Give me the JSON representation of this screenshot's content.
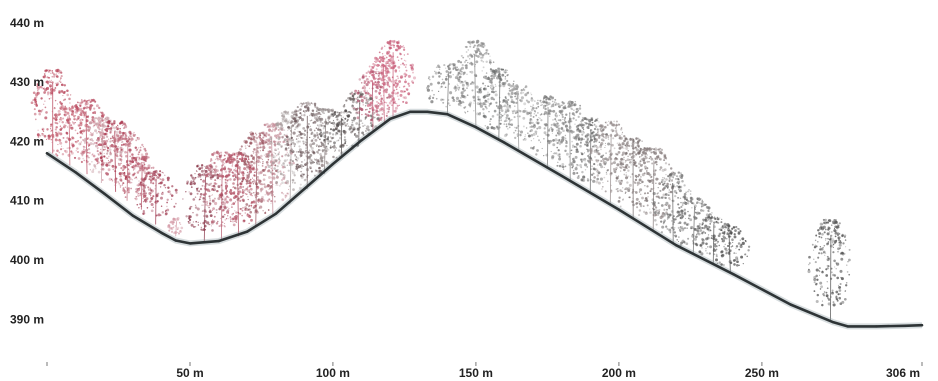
{
  "chart_data": {
    "type": "line",
    "title": "",
    "xlabel": "",
    "ylabel": "",
    "x_unit": "m",
    "y_unit": "m",
    "xlim": [
      0,
      306
    ],
    "ylim": [
      386,
      441
    ],
    "x_ticks": [
      {
        "value": 50,
        "label": "50 m"
      },
      {
        "value": 100,
        "label": "100 m"
      },
      {
        "value": 150,
        "label": "150 m"
      },
      {
        "value": 200,
        "label": "200 m"
      },
      {
        "value": 250,
        "label": "250 m"
      },
      {
        "value": 306,
        "label": "306 m"
      }
    ],
    "y_ticks": [
      {
        "value": 440,
        "label": "440 m"
      },
      {
        "value": 430,
        "label": "430 m"
      },
      {
        "value": 420,
        "label": "420 m"
      },
      {
        "value": 410,
        "label": "410 m"
      },
      {
        "value": 400,
        "label": "400 m"
      },
      {
        "value": 390,
        "label": "390 m"
      }
    ],
    "grid": false,
    "legend": "none",
    "series": [
      {
        "x": [
          0,
          10,
          20,
          30,
          40,
          45,
          50,
          60,
          70,
          80,
          90,
          100,
          110,
          120,
          127,
          130,
          133,
          140,
          150,
          160,
          180,
          200,
          220,
          240,
          260,
          275,
          280,
          290,
          300,
          306
        ],
        "y": [
          418,
          414.8,
          411.2,
          407.5,
          404.6,
          403.3,
          402.8,
          403.2,
          404.8,
          407.8,
          412,
          416.2,
          420.2,
          423.8,
          425,
          425,
          425,
          424.6,
          422.4,
          419.8,
          414.2,
          408.5,
          402.5,
          397.6,
          392.5,
          389.5,
          388.8,
          388.8,
          388.9,
          389
        ]
      }
    ],
    "trees": [
      {
        "x": 2,
        "base": 418,
        "height": 14,
        "color": "#b8455a"
      },
      {
        "x": 8,
        "base": 416,
        "height": 10,
        "color": "#c76576"
      },
      {
        "x": 14,
        "base": 414.5,
        "height": 12.5,
        "color": "#b84a60"
      },
      {
        "x": 19,
        "base": 413,
        "height": 11,
        "color": "#caa0a8"
      },
      {
        "x": 24,
        "base": 411.5,
        "height": 12,
        "color": "#a8324a"
      },
      {
        "x": 28,
        "base": 410,
        "height": 11.5,
        "color": "#c07080"
      },
      {
        "x": 33,
        "base": 408.5,
        "height": 9,
        "color": "#b55468"
      },
      {
        "x": 38,
        "base": 406,
        "height": 9,
        "color": "#a03c52"
      },
      {
        "x": 45,
        "base": 404,
        "height": 3,
        "color": "#d49aa6"
      },
      {
        "x": 55,
        "base": 403,
        "height": 13,
        "color": "#8c3a4c"
      },
      {
        "x": 61,
        "base": 403.2,
        "height": 15,
        "color": "#b85f72"
      },
      {
        "x": 67,
        "base": 404,
        "height": 14,
        "color": "#b04a5e"
      },
      {
        "x": 73,
        "base": 405.5,
        "height": 16,
        "color": "#9a5560"
      },
      {
        "x": 79,
        "base": 407.5,
        "height": 15.5,
        "color": "#c28894"
      },
      {
        "x": 85,
        "base": 409.5,
        "height": 15.5,
        "color": "#a9a0a0"
      },
      {
        "x": 91,
        "base": 412,
        "height": 14.5,
        "color": "#6a5558"
      },
      {
        "x": 97,
        "base": 414.5,
        "height": 11,
        "color": "#8a8080"
      },
      {
        "x": 103,
        "base": 417.2,
        "height": 8,
        "color": "#555050"
      },
      {
        "x": 109,
        "base": 419.8,
        "height": 8.5,
        "color": "#6a6060"
      },
      {
        "x": 114,
        "base": 421.8,
        "height": 10,
        "color": "#b0506a"
      },
      {
        "x": 118,
        "base": 423,
        "height": 11.5,
        "color": "#d07088"
      },
      {
        "x": 121,
        "base": 424,
        "height": 13,
        "color": "#c85c78"
      },
      {
        "x": 140,
        "base": 424.6,
        "height": 8.5,
        "color": "#7a7a7a"
      },
      {
        "x": 150,
        "base": 422.4,
        "height": 14.5,
        "color": "#8a8a8a"
      },
      {
        "x": 158,
        "base": 420.3,
        "height": 12,
        "color": "#6e7070"
      },
      {
        "x": 165,
        "base": 418.4,
        "height": 11,
        "color": "#9a9a9a"
      },
      {
        "x": 175,
        "base": 415.6,
        "height": 12,
        "color": "#7a7a7a"
      },
      {
        "x": 183,
        "base": 413.3,
        "height": 13.5,
        "color": "#888888"
      },
      {
        "x": 190,
        "base": 411.4,
        "height": 12.5,
        "color": "#6a6a6a"
      },
      {
        "x": 197,
        "base": 409.4,
        "height": 14,
        "color": "#9a9090"
      },
      {
        "x": 205,
        "base": 407.0,
        "height": 13.5,
        "color": "#7a7070"
      },
      {
        "x": 212,
        "base": 404.9,
        "height": 14,
        "color": "#8a8080"
      },
      {
        "x": 219,
        "base": 402.8,
        "height": 12,
        "color": "#6a6a6a"
      },
      {
        "x": 226,
        "base": 401.0,
        "height": 9.5,
        "color": "#707070"
      },
      {
        "x": 233,
        "base": 399.3,
        "height": 8,
        "color": "#5a5a5a"
      },
      {
        "x": 239,
        "base": 397.8,
        "height": 8,
        "color": "#4e4e4e"
      },
      {
        "x": 274,
        "base": 389.8,
        "height": 17,
        "color": "#555555"
      }
    ]
  }
}
